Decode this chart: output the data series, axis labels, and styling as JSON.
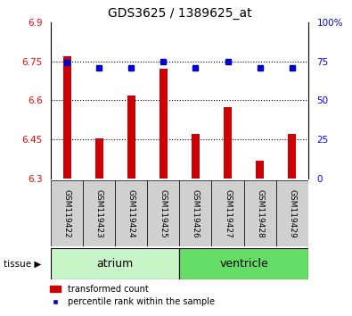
{
  "title": "GDS3625 / 1389625_at",
  "samples": [
    "GSM119422",
    "GSM119423",
    "GSM119424",
    "GSM119425",
    "GSM119426",
    "GSM119427",
    "GSM119428",
    "GSM119429"
  ],
  "red_values": [
    6.77,
    6.455,
    6.62,
    6.72,
    6.47,
    6.575,
    6.37,
    6.47
  ],
  "blue_values": [
    74,
    71,
    71,
    75,
    71,
    75,
    71,
    71
  ],
  "ylim_left": [
    6.3,
    6.9
  ],
  "ylim_right": [
    0,
    100
  ],
  "yticks_left": [
    6.3,
    6.45,
    6.6,
    6.75,
    6.9
  ],
  "ytick_labels_left": [
    "6.3",
    "6.45",
    "6.6",
    "6.75",
    "6.9"
  ],
  "yticks_right": [
    0,
    25,
    50,
    75,
    100
  ],
  "ytick_labels_right": [
    "0",
    "25",
    "50",
    "75",
    "100%"
  ],
  "groups": [
    {
      "label": "atrium",
      "start": 0,
      "end": 3,
      "color": "#c8f5c8"
    },
    {
      "label": "ventricle",
      "start": 4,
      "end": 7,
      "color": "#66dd66"
    }
  ],
  "legend_red": "transformed count",
  "legend_blue": "percentile rank within the sample",
  "bar_color": "#cc0000",
  "dot_color": "#0000cc",
  "bar_width": 0.25,
  "grid_lines": [
    6.45,
    6.6,
    6.75
  ],
  "tick_area_color": "#d0d0d0",
  "plot_bg": "#ffffff"
}
